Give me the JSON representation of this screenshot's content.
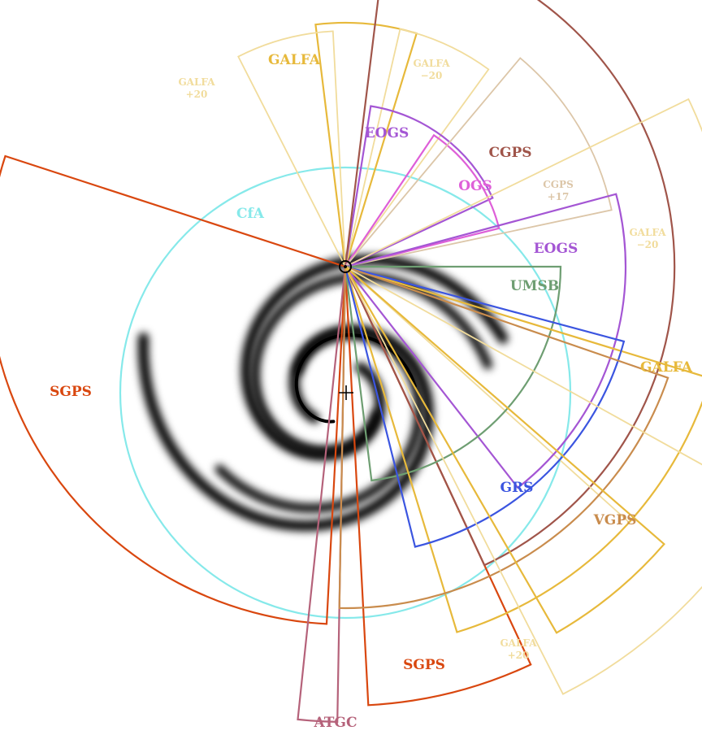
{
  "diagram": {
    "circle_label": "CfA",
    "survey_labels": {
      "sgps_large": "SGPS",
      "sgps_small": "SGPS",
      "atgc": "ATGC",
      "galfa_top": "GALFA",
      "galfa_plus20_top": "GALFA\n+20",
      "galfa_minus20_top": "GALFA\n−20",
      "eogs_top": "EOGS",
      "cgps": "CGPS",
      "ogs": "OGS",
      "cgps_plus17": "CGPS\n+17",
      "galfa_minus20_right": "GALFA\n−20",
      "eogs_right": "EOGS",
      "umsb": "UMSB",
      "galfa_right": "GALFA",
      "grs": "GRS",
      "vgps": "VGPS",
      "galfa_plus20_bottom": "GALFA\n+20"
    }
  },
  "colors": {
    "sgps": "#d9470f",
    "atgc": "#b5627a",
    "galfa": "#e7b93b",
    "galfa_faint": "#f1dc9c",
    "eogs": "#a456d4",
    "cgps": "#a0554a",
    "cgps_faint": "#dcc6a8",
    "ogs": "#de5fd8",
    "umsb": "#6e9e72",
    "grs": "#3b55e0",
    "vgps": "#c98c4d",
    "cfa": "#86e9ea",
    "arms": "#000000",
    "markers": "#000000"
  }
}
